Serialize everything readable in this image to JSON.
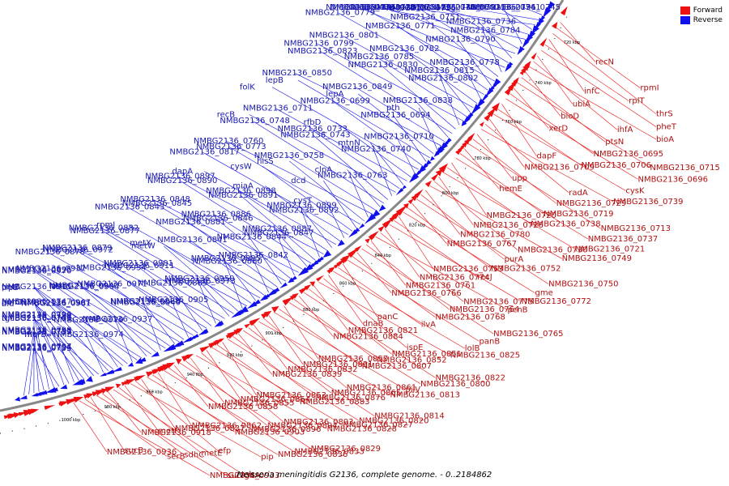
{
  "legend": {
    "forward_label": "Forward",
    "reverse_label": "Reverse",
    "forward_color": "#ee1111",
    "reverse_color": "#1111ee"
  },
  "colors": {
    "forward_feature": "#ee1111",
    "reverse_feature": "#1111ee",
    "forward_text": "#b01010",
    "reverse_text": "#1818b0",
    "backbone": "#888888"
  },
  "caption": "Neisseria meningitidis G2136, complete genome. - 0..2184862",
  "ticks": [
    "720 kbp",
    "740 kbp",
    "760 kbp",
    "780 kbp",
    "800 kbp",
    "820 kbp",
    "840 kbp",
    "860 kbp",
    "880 kbp",
    "900 kbp",
    "920 kbp",
    "940 kbp",
    "960 kbp",
    "980 kbp",
    "1000 kbp"
  ],
  "reverse_labels": [
    "NMBG2136_0745",
    "NMBG2136_0792",
    "NMBG2136_0754",
    "NMBG2136_0791",
    "NMBG2136_0742",
    "NMBG2136_0789",
    "NMBG2136_0741",
    "NMBG2136_0788",
    "NMBG2136_0787",
    "NMBG2136_0736",
    "NMBG2136_0756",
    "NMBG2136_0734",
    "NMBG2136_0784",
    "NMBG2136_0751",
    "NMBG2136_0783",
    "NMBG2136_0790",
    "NMBG2136_0771",
    "NMBG2136_0779",
    "NMBG2136_0778",
    "NMBG2136_0782",
    "NMBG2136_0801",
    "NMBG2136_0815",
    "NMBG2136_0785",
    "NMBG2136_0799",
    "NMBG2136_0802",
    "NMBG2136_0830",
    "NMBG2136_0823",
    "NMBG2136_0838",
    "NMBG2136_0849",
    "NMBG2136_0850",
    "pth",
    "lepA",
    "lepB",
    "NMBG2136_0694",
    "NMBG2136_0699",
    "folK",
    "NMBG2136_0710",
    "rfbD",
    "NMBG2136_0711",
    "mtnN",
    "NMBG2136_0733",
    "recB",
    "NMBG2136_0740",
    "NMBG2136_0743",
    "NMBG2136_0748",
    "clpA",
    "NMBG2136_0758",
    "NMBG2136_0760",
    "NMBG2136_0763",
    "hisS",
    "NMBG2136_0773",
    "dcd",
    "cysW",
    "NMBG2136_0817",
    "cysT",
    "miaA",
    "dapA",
    "NMBG2136_0899",
    "NMBG2136_0898",
    "NMBG2136_0897",
    "NMBG2136_0892",
    "NMBG2136_0891",
    "NMBG2136_0890",
    "NMBG2136_0887",
    "NMBG2136_0886",
    "NMBG2136_0848",
    "NMBG2136_0847",
    "NMBG2136_0846",
    "NMBG2136_0845",
    "NMBG2136_0844",
    "NMBG2136_0881",
    "NMBG2136_0843",
    "NMBG2136_0842",
    "NMBG2136_0841",
    "rpmJ",
    "NMBG2136_0885",
    "metX",
    "NMBG2136_0882",
    "NMBG2136_0880",
    "metW",
    "NMBG2136_0877",
    "NMBG2136_0950",
    "NMBG2136_0901",
    "NMBG2136_0879",
    "NMBG2136_0973",
    "NMBG2136_0911",
    "NMBG2136_0972",
    "NMBG2136_0889",
    "NMBG2136_0934",
    "NMBG2136_0878",
    "NMBG2136_0905",
    "NMBG2136_0971",
    "NMBG2136_0932",
    "NMBG2136_0888",
    "NMBG2136_0940",
    "NMBG2136_0895",
    "NMBG2136_0949",
    "NMBG2136_0904",
    "NMBG2136_0970",
    "uvrA",
    "NMBG2136_0967",
    "NMBG2136_0915",
    "NMBG2136_0937",
    "NMBG2136_0981",
    "pntA",
    "NMBG2136_0979",
    "dld",
    "trpE",
    "NMBG2136_0974",
    "tgt",
    "hemH",
    "hfq",
    "NMBG2136_0702",
    "purC",
    "murB",
    "NMBG2136_0746",
    "NMBG2136_0747",
    "NMBG2136_0755",
    "NMBG2136_0757",
    "NMBG2136_0793",
    "NMBG2136_0794",
    "NMBG2136_0795",
    "NMBG2136_0796",
    "NMBG2136_0797",
    "NMBG2136_0798"
  ],
  "forward_labels": [
    "recN",
    "rpmI",
    "thrS",
    "infC",
    "rplT",
    "pheT",
    "ubiA",
    "ihfA",
    "bioA",
    "bioD",
    "ptsN",
    "NMBG2136_0715",
    "xerD",
    "NMBG2136_0695",
    "NMBG2136_0696",
    "dapF",
    "NMBG2136_0706",
    "cysK",
    "NMBG2136_0709",
    "radA",
    "NMBG2136_0739",
    "upp",
    "NMBG2136_0729",
    "NMBG2136_0713",
    "hemE",
    "NMBG2136_0719",
    "NMBG2136_0737",
    "NMBG2136_0720",
    "NMBG2136_0738",
    "NMBG2136_0721",
    "NMBG2136_0726",
    "NMBG2136_0730",
    "NMBG2136_0749",
    "NMBG2136_0780",
    "purA",
    "NMBG2136_0750",
    "NMBG2136_0767",
    "NMBG2136_0752",
    "gme",
    "NMBG2136_0753",
    "recJ",
    "NMBG2136_0772",
    "NMBG2136_0774",
    "NMBG2136_0775",
    "pcnB",
    "NMBG2136_0761",
    "NMBG2136_0764",
    "NMBG2136_0765",
    "NMBG2136_0766",
    "NMBG2136_0768",
    "panB",
    "panC",
    "ilvA",
    "lolB",
    "dnaB",
    "ispE",
    "NMBG2136_0825",
    "NMBG2136_0821",
    "NMBG2136_0851",
    "NMBG2136_0822",
    "NMBG2136_0884",
    "NMBG2136_0852",
    "NMBG2136_0800",
    "NMBG2136_0857",
    "NMBG2136_0807",
    "pilV",
    "NMBG2136_0831",
    "NMBG2136_0861",
    "NMBG2136_0813",
    "NMBG2136_0832",
    "NMBG2136_0865",
    "NMBG2136_0814",
    "NMBG2136_0839",
    "NMBG2136_0876",
    "NMBG2136_0820",
    "NMBG2136_0853",
    "NMBG2136_0883",
    "NMBG2136_0827",
    "NMBG2136_0854",
    "NMBG2136_0893",
    "NMBG2136_0828",
    "NMBG2136_0855",
    "NMBG2136_0894",
    "NMBG2136_0829",
    "NMBG2136_0858",
    "NMBG2136_0896",
    "NMBG2136_0833",
    "NMBG2136_0862",
    "NMBG2136_0903",
    "NMBG2136_0836",
    "NMBG2136_0837",
    "efp",
    "pip",
    "metF",
    "metE",
    "gltA",
    "NMBG2136_0918",
    "sdhC",
    "sucA",
    "sucB",
    "serB",
    "NMBG2136_0933",
    "NMBG2136_0936"
  ]
}
